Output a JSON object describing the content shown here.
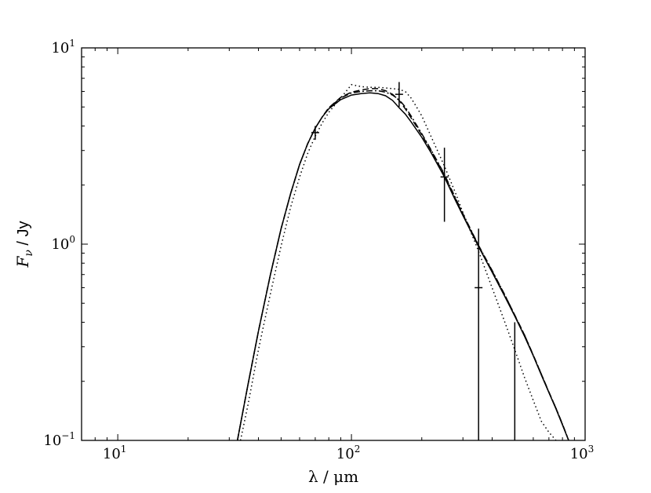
{
  "chart_data": {
    "type": "line",
    "title": "",
    "xlabel": "λ / μm",
    "ylabel_main": "F",
    "ylabel_sub": "ν",
    "ylabel_rest": " / Jy",
    "x_scale": "log",
    "y_scale": "log",
    "xlim": [
      7,
      1000
    ],
    "ylim": [
      0.1,
      10
    ],
    "grid": false,
    "legend": "none",
    "x_ticks": [
      {
        "value": 10,
        "base": "10",
        "exp": "1"
      },
      {
        "value": 100,
        "base": "10",
        "exp": "2"
      },
      {
        "value": 1000,
        "base": "10",
        "exp": "3"
      }
    ],
    "y_ticks": [
      {
        "value": 0.1,
        "base": "10",
        "exp": "−1"
      },
      {
        "value": 1,
        "base": "10",
        "exp": "0"
      },
      {
        "value": 10,
        "base": "10",
        "exp": "1"
      }
    ],
    "series": [
      {
        "style": "solid",
        "x": [
          32.5,
          36,
          40,
          45,
          50,
          55,
          60,
          65,
          70,
          75,
          80,
          90,
          100,
          110,
          120,
          130,
          140,
          150,
          160,
          170,
          180,
          200,
          220,
          250,
          280,
          300,
          350,
          400,
          450,
          500,
          550,
          600,
          650,
          700,
          750,
          800,
          850
        ],
        "y": [
          0.1,
          0.19,
          0.36,
          0.7,
          1.2,
          1.82,
          2.55,
          3.25,
          3.9,
          4.45,
          4.9,
          5.45,
          5.75,
          5.85,
          5.9,
          5.85,
          5.7,
          5.4,
          4.95,
          4.6,
          4.2,
          3.5,
          2.9,
          2.2,
          1.65,
          1.4,
          0.97,
          0.72,
          0.55,
          0.43,
          0.34,
          0.27,
          0.215,
          0.175,
          0.145,
          0.12,
          0.1
        ]
      },
      {
        "style": "dashed",
        "x": [
          32.5,
          36,
          40,
          45,
          50,
          55,
          60,
          65,
          70,
          75,
          80,
          90,
          100,
          110,
          120,
          130,
          140,
          150,
          160,
          170,
          180,
          200,
          220,
          250,
          280,
          300,
          350,
          400,
          450,
          500,
          550,
          600,
          650,
          700,
          750,
          800,
          850
        ],
        "y": [
          0.1,
          0.19,
          0.36,
          0.7,
          1.2,
          1.82,
          2.55,
          3.25,
          3.9,
          4.45,
          4.95,
          5.6,
          5.95,
          6.1,
          6.2,
          6.2,
          6.05,
          5.8,
          5.4,
          4.9,
          4.4,
          3.6,
          2.98,
          2.25,
          1.68,
          1.42,
          0.98,
          0.73,
          0.56,
          0.435,
          0.345,
          0.272,
          0.217,
          0.176,
          0.146,
          0.121,
          0.1
        ]
      },
      {
        "style": "dashdot",
        "x": [
          32.5,
          36,
          40,
          45,
          50,
          55,
          60,
          65,
          70,
          75,
          80,
          90,
          100,
          110,
          120,
          130,
          140,
          150,
          160,
          170,
          180,
          200,
          220,
          250,
          280,
          300,
          350,
          400,
          450,
          500,
          550,
          600,
          650,
          700,
          750,
          800,
          850
        ],
        "y": [
          0.1,
          0.19,
          0.36,
          0.7,
          1.2,
          1.82,
          2.55,
          3.25,
          3.9,
          4.45,
          4.95,
          5.55,
          5.9,
          6.0,
          6.05,
          6.05,
          5.95,
          5.75,
          5.45,
          5.0,
          4.5,
          3.65,
          3.0,
          2.27,
          1.7,
          1.43,
          0.985,
          0.735,
          0.56,
          0.435,
          0.345,
          0.272,
          0.217,
          0.176,
          0.146,
          0.121,
          0.1
        ]
      },
      {
        "style": "dotted",
        "x": [
          33.5,
          36,
          40,
          45,
          50,
          55,
          60,
          65,
          70,
          75,
          80,
          90,
          100,
          110,
          120,
          130,
          140,
          150,
          160,
          170,
          180,
          190,
          200,
          220,
          250,
          280,
          300,
          350,
          400,
          450,
          500,
          550,
          600,
          650,
          700,
          750,
          780
        ],
        "y": [
          0.1,
          0.15,
          0.29,
          0.56,
          0.98,
          1.55,
          2.2,
          2.9,
          3.55,
          4.15,
          4.7,
          5.55,
          6.5,
          6.35,
          6.3,
          6.3,
          6.25,
          6.2,
          6.15,
          6.0,
          5.55,
          5.0,
          4.5,
          3.5,
          2.5,
          1.8,
          1.45,
          0.92,
          0.6,
          0.41,
          0.29,
          0.21,
          0.16,
          0.125,
          0.11,
          0.1,
          0.095
        ]
      }
    ],
    "data_points": [
      {
        "x": 70,
        "y": 3.7,
        "ylow": 3.4,
        "yhigh": 4.0
      },
      {
        "x": 160,
        "y": 5.8,
        "ylow": 5.0,
        "yhigh": 6.7
      },
      {
        "x": 250,
        "y": 2.2,
        "ylow": 1.3,
        "yhigh": 3.1
      },
      {
        "x": 350,
        "y": 0.6,
        "ylow": 0.1,
        "yhigh": 1.2
      },
      {
        "x": 500,
        "y": null,
        "ylow": 0.1,
        "yhigh": 0.4
      }
    ]
  }
}
